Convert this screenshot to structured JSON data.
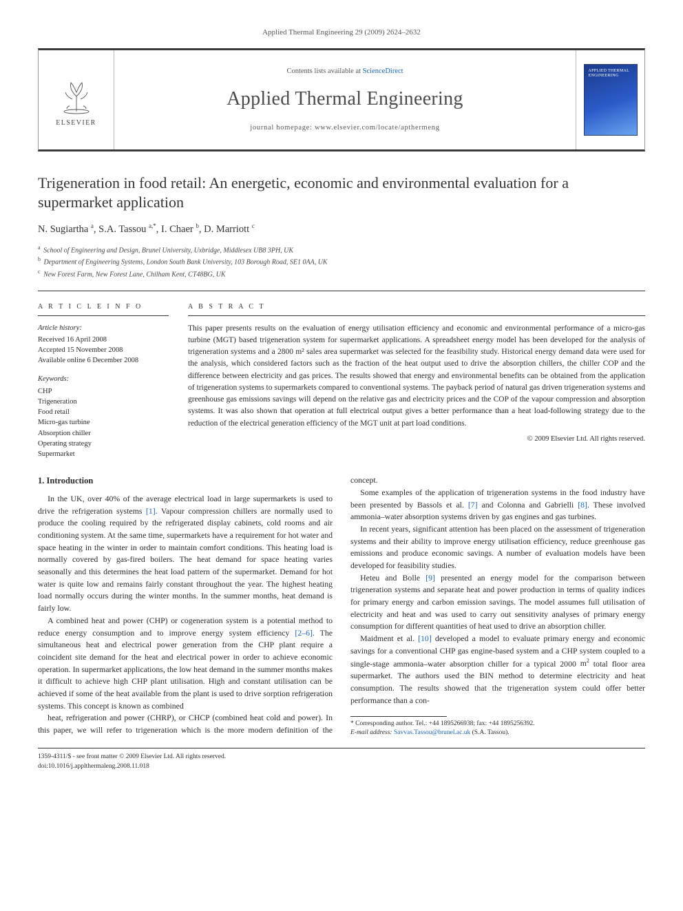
{
  "running_head": "Applied Thermal Engineering 29 (2009) 2624–2632",
  "banner": {
    "publisher": "ELSEVIER",
    "contents_prefix": "Contents lists available at ",
    "contents_link_text": "ScienceDirect",
    "journal_name": "Applied Thermal Engineering",
    "homepage_label": "journal homepage: www.elsevier.com/locate/apthermeng",
    "cover_title": "APPLIED THERMAL ENGINEERING"
  },
  "title": "Trigeneration in food retail: An energetic, economic and environmental evaluation for a supermarket application",
  "authors_html": "N. Sugiartha <sup>a</sup>, S.A. Tassou <sup>a,*</sup>, I. Chaer <sup>b</sup>, D. Marriott <sup>c</sup>",
  "affiliations": [
    {
      "sup": "a",
      "text": "School of Engineering and Design, Brunel University, Uxbridge, Middlesex UB8 3PH, UK"
    },
    {
      "sup": "b",
      "text": "Department of Engineering Systems, London South Bank University, 103 Borough Road, SE1 0AA, UK"
    },
    {
      "sup": "c",
      "text": "New Forest Farm, New Forest Lane, Chilham Kent, CT48BG, UK"
    }
  ],
  "article_info": {
    "head": "A R T I C L E   I N F O",
    "history_label": "Article history:",
    "history": [
      "Received 16 April 2008",
      "Accepted 15 November 2008",
      "Available online 6 December 2008"
    ],
    "kw_label": "Keywords:",
    "keywords": [
      "CHP",
      "Trigeneration",
      "Food retail",
      "Micro-gas turbine",
      "Absorption chiller",
      "Operating strategy",
      "Supermarket"
    ]
  },
  "abstract": {
    "head": "A B S T R A C T",
    "body": "This paper presents results on the evaluation of energy utilisation efficiency and economic and environmental performance of a micro-gas turbine (MGT) based trigeneration system for supermarket applications. A spreadsheet energy model has been developed for the analysis of trigeneration systems and a 2800 m² sales area supermarket was selected for the feasibility study. Historical energy demand data were used for the analysis, which considered factors such as the fraction of the heat output used to drive the absorption chillers, the chiller COP and the difference between electricity and gas prices. The results showed that energy and environmental benefits can be obtained from the application of trigeneration systems to supermarkets compared to conventional systems. The payback period of natural gas driven trigeneration systems and greenhouse gas emissions savings will depend on the relative gas and electricity prices and the COP of the vapour compression and absorption systems. It was also shown that operation at full electrical output gives a better performance than a heat load-following strategy due to the reduction of the electrical generation efficiency of the MGT unit at part load conditions.",
    "copyright": "© 2009 Elsevier Ltd. All rights reserved."
  },
  "section_title": "1. Introduction",
  "paragraphs": [
    "In the UK, over 40% of the average electrical load in large supermarkets is used to drive the refrigeration systems [1]. Vapour compression chillers are normally used to produce the cooling required by the refrigerated display cabinets, cold rooms and air conditioning system. At the same time, supermarkets have a requirement for hot water and space heating in the winter in order to maintain comfort conditions. This heating load is normally covered by gas-fired boilers. The heat demand for space heating varies seasonally and this determines the heat load pattern of the supermarket. Demand for hot water is quite low and remains fairly constant throughout the year. The highest heating load normally occurs during the winter months. In the summer months, heat demand is fairly low.",
    "A combined heat and power (CHP) or cogeneration system is a potential method to reduce energy consumption and to improve energy system efficiency [2–6]. The simultaneous heat and electrical power generation from the CHP plant require a coincident site demand for the heat and electrical power in order to achieve economic operation. In supermarket applications, the low heat demand in the summer months makes it difficult to achieve high CHP plant utilisation. High and constant utilisation can be achieved if some of the heat available from the plant is used to drive sorption refrigeration systems. This concept is known as combined",
    "heat, refrigeration and power (CHRP), or CHCP (combined heat cold and power). In this paper, we will refer to trigeneration which is the more modern definition of the concept.",
    "Some examples of the application of trigeneration systems in the food industry have been presented by Bassols et al. [7] and Colonna and Gabrielli [8]. These involved ammonia–water absorption systems driven by gas engines and gas turbines.",
    "In recent years, significant attention has been placed on the assessment of trigeneration systems and their ability to improve energy utilisation efficiency, reduce greenhouse gas emissions and produce economic savings. A number of evaluation models have been developed for feasibility studies.",
    "Heteu and Bolle [9] presented an energy model for the comparison between trigeneration systems and separate heat and power production in terms of quality indices for primary energy and carbon emission savings. The model assumes full utilisation of electricity and heat and was used to carry out sensitivity analyses of primary energy consumption for different quantities of heat used to drive an absorption chiller.",
    "Maidment et al. [10] developed a model to evaluate primary energy and economic savings for a conventional CHP gas engine-based system and a CHP system coupled to a single-stage ammonia–water absorption chiller for a typical 2000 m² total floor area supermarket. The authors used the BIN method to determine electricity and heat consumption. The results showed that the trigeneration system could offer better performance than a con-"
  ],
  "ref_spans": {
    "0": "[1]",
    "1": "[2–6]",
    "3": {
      "a": "[7]",
      "b": "[8]"
    },
    "5": "[9]",
    "6": "[10]"
  },
  "footnote": {
    "corr_line": "* Corresponding author. Tel.: +44 1895266938; fax: +44 1895256392.",
    "email_label": "E-mail address:",
    "email": "Savvas.Tassou@brunel.ac.uk",
    "email_suffix": "(S.A. Tassou)."
  },
  "footer": {
    "left1": "1359-4311/$ - see front matter © 2009 Elsevier Ltd. All rights reserved.",
    "left2": "doi:10.1016/j.applthermaleng.2008.11.018"
  },
  "colors": {
    "link": "#1a63b0",
    "rule": "#333333",
    "text": "#2a2a2a",
    "cover_grad_from": "#1a3a8a",
    "cover_grad_mid": "#2b5bc9",
    "cover_grad_to": "#6aa5ef"
  },
  "typography": {
    "body_pt": 11.8,
    "title_pt": 22,
    "journal_name_pt": 28,
    "abstract_pt": 11.5,
    "footnote_pt": 9.5
  }
}
